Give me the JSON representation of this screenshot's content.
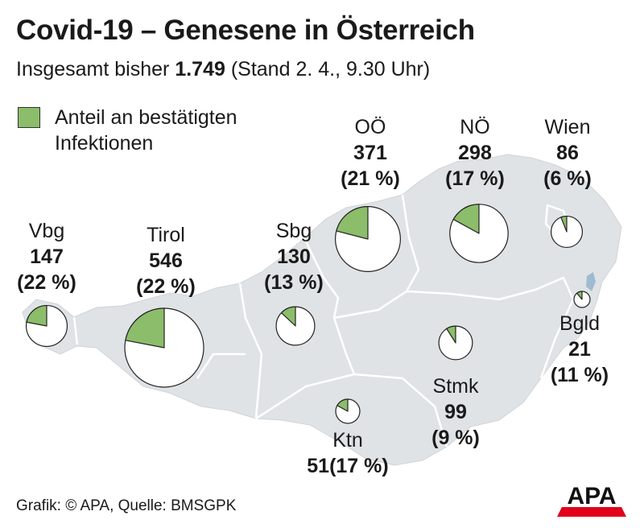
{
  "header": {
    "title": "Covid-19 – Genesene in Österreich",
    "subtitle_prefix": "Insgesamt bisher ",
    "subtitle_total": "1.749",
    "subtitle_suffix": " (Stand 2. 4., 9.30 Uhr)"
  },
  "legend": {
    "line1": "Anteil an bestätigten",
    "line2": "Infektionen"
  },
  "footer": {
    "source": "Grafik: © APA, Quelle: BMSGPK",
    "logo_text": "APA"
  },
  "colors": {
    "share": "#8cbd6a",
    "pie_bg": "#ffffff",
    "map": "#dfe3e6",
    "map_border": "#ffffff",
    "lake": "#9fbbd0",
    "logo_red": "#e2001a"
  },
  "chart_data": {
    "type": "pie",
    "title": "Covid-19 – Genesene in Österreich",
    "total": 1749,
    "series": [
      {
        "name": "Vbg",
        "value_label": "147",
        "share_label": "(22 %)",
        "recovered": 147,
        "share_pct": 22
      },
      {
        "name": "Tirol",
        "value_label": "546",
        "share_label": "(22 %)",
        "recovered": 546,
        "share_pct": 22
      },
      {
        "name": "Sbg",
        "value_label": "130",
        "share_label": "(13 %)",
        "recovered": 130,
        "share_pct": 13
      },
      {
        "name": "OÖ",
        "value_label": "371",
        "share_label": "(21 %)",
        "recovered": 371,
        "share_pct": 21
      },
      {
        "name": "NÖ",
        "value_label": "298",
        "share_label": "(17 %)",
        "recovered": 298,
        "share_pct": 17
      },
      {
        "name": "Wien",
        "value_label": "86",
        "share_label": "(6 %)",
        "recovered": 86,
        "share_pct": 6
      },
      {
        "name": "Bgld",
        "value_label": "21",
        "share_label": "(11 %)",
        "recovered": 21,
        "share_pct": 11
      },
      {
        "name": "Stmk",
        "value_label": "99",
        "share_label": "(9 %)",
        "recovered": 99,
        "share_pct": 9
      },
      {
        "name": "Ktn",
        "value_label": "51",
        "share_label": "(17 %)",
        "recovered": 51,
        "share_pct": 17
      }
    ]
  }
}
